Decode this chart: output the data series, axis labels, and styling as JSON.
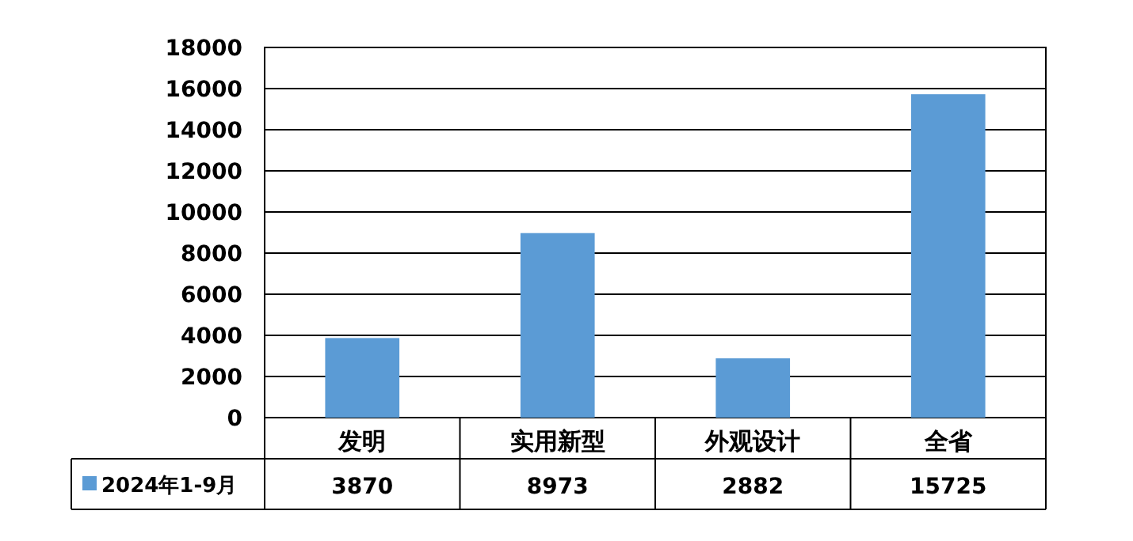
{
  "chart_data": {
    "type": "bar",
    "categories": [
      "发明",
      "实用新型",
      "外观设计",
      "全省"
    ],
    "series": [
      {
        "name": "2024年1-9月",
        "color": "#5b9bd5",
        "values": [
          3870,
          8973,
          2882,
          15725
        ]
      }
    ],
    "ylim": [
      0,
      18000
    ],
    "yticks": [
      0,
      2000,
      4000,
      6000,
      8000,
      10000,
      12000,
      14000,
      16000,
      18000
    ],
    "grid": "y",
    "legend": "bottom",
    "data_labels": true
  }
}
